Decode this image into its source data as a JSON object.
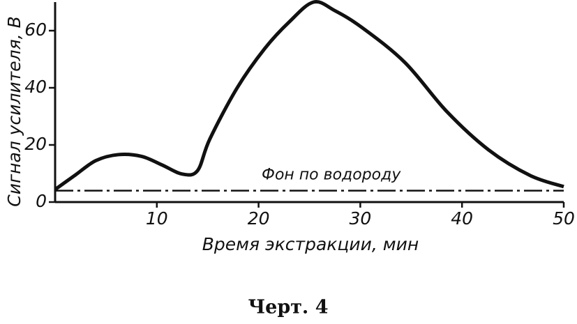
{
  "chart_data": {
    "type": "line",
    "x_label": "Время экстракции, мин",
    "y_label": "Сигнал усилителя, В",
    "x": [
      0,
      2,
      4,
      6.2,
      8.5,
      10.5,
      12.5,
      14,
      15.2,
      17.9,
      20.6,
      23,
      25.4,
      27.5,
      30.2,
      34.4,
      38.5,
      42.6,
      46.7,
      50
    ],
    "series": [
      {
        "name": "Сигнал усилителя",
        "color": "#111111",
        "values": [
          4.4,
          9.5,
          14.5,
          16.6,
          16,
          13,
          9.8,
          11,
          22,
          40,
          53.7,
          63,
          70,
          67,
          61,
          48.8,
          31.7,
          18.3,
          9.3,
          5.4
        ]
      }
    ],
    "xlim": [
      0,
      50
    ],
    "xticks": [
      10,
      20,
      30,
      40,
      50
    ],
    "ylim": [
      0,
      70
    ],
    "yticks": [
      0,
      20,
      40,
      60
    ],
    "reference_line": {
      "value": 4,
      "label": "Фон по водороду"
    }
  },
  "caption": "Черт. 4"
}
